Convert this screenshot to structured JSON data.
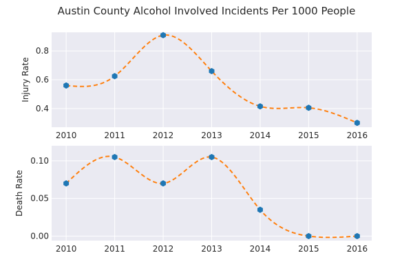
{
  "chart_data": [
    {
      "type": "line",
      "title": "Austin County Alcohol Involved Incidents Per 1000 People",
      "xlabel": "",
      "ylabel": "Injury Rate",
      "x": [
        2010,
        2011,
        2012,
        2013,
        2014,
        2015,
        2016
      ],
      "series": [
        {
          "values": [
            0.56,
            0.625,
            0.91,
            0.66,
            0.415,
            0.405,
            0.3
          ]
        }
      ],
      "smoothed_curve": true,
      "xlim": [
        2009.7,
        2016.3
      ],
      "ylim": [
        0.27,
        0.93
      ],
      "yticks": [
        0.4,
        0.6,
        0.8
      ],
      "ytick_labels": [
        "0.4",
        "0.6",
        "0.8"
      ],
      "grid": true,
      "colors": {
        "marker": "#1f77b4",
        "curve": "#ff7f0e",
        "panel": "#eaeaf2"
      }
    },
    {
      "type": "line",
      "xlabel": "",
      "ylabel": "Death Rate",
      "x": [
        2010,
        2011,
        2012,
        2013,
        2014,
        2015,
        2016
      ],
      "series": [
        {
          "values": [
            0.07,
            0.105,
            0.07,
            0.105,
            0.035,
            0.0,
            0.0
          ]
        }
      ],
      "smoothed_curve": true,
      "xlim": [
        2009.7,
        2016.3
      ],
      "ylim": [
        -0.006,
        0.12
      ],
      "yticks": [
        0.0,
        0.05,
        0.1
      ],
      "ytick_labels": [
        "0.00",
        "0.05",
        "0.10"
      ],
      "grid": true,
      "colors": {
        "marker": "#1f77b4",
        "curve": "#ff7f0e",
        "panel": "#eaeaf2"
      }
    }
  ]
}
